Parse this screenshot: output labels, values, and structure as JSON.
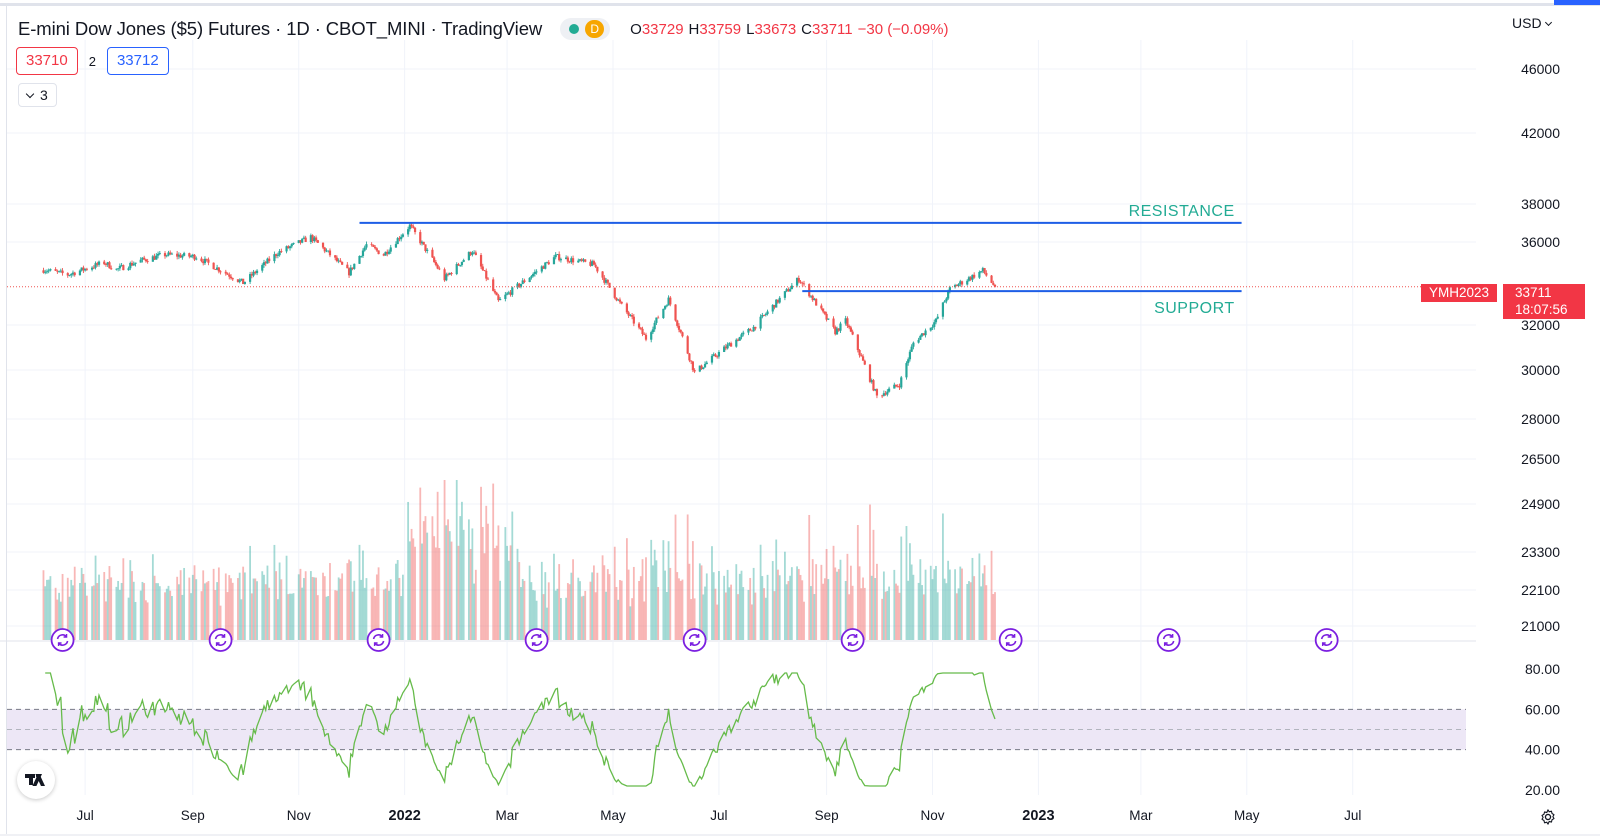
{
  "header": {
    "title": "E-mini Dow Jones ($5) Futures · 1D · CBOT_MINI · TradingView",
    "status_d": "D",
    "ohlc": {
      "o_label": "O",
      "o": "33729",
      "h_label": "H",
      "h": "33759",
      "l_label": "L",
      "l": "33673",
      "c_label": "C",
      "c": "33711",
      "change": "−30 (−0.09%)"
    },
    "sell_price": "33710",
    "spread": "2",
    "buy_price": "33712",
    "indicators_count": "3",
    "currency": "USD"
  },
  "badges": {
    "symbol": "YMH2023",
    "last_price": "33711",
    "countdown": "18:07:56"
  },
  "annotations": {
    "resistance_label": "RESISTANCE",
    "support_label": "SUPPORT"
  },
  "colors": {
    "up": "#26a69a",
    "down": "#ef5350",
    "line_blue": "#1e5ee6",
    "annotation_green": "#22ab94",
    "rsi_line": "#66bb4a",
    "rsi_band": "#ede7f6",
    "event_icon": "#7b1fe0"
  },
  "icons": {
    "logo": "tradingview-logo-icon",
    "settings": "gear-icon",
    "event": "dividend-event-icon"
  },
  "chart_data": {
    "type": "candlestick",
    "title": "E-mini Dow Jones ($5) Futures · 1D · CBOT_MINI · TradingView",
    "x_labels": [
      "Jul",
      "Sep",
      "Nov",
      "2022",
      "Mar",
      "May",
      "Jul",
      "Sep",
      "Nov",
      "2023",
      "Mar",
      "May",
      "Jul"
    ],
    "y_ticks": [
      "46000",
      "42000",
      "38000",
      "36000",
      "32000",
      "30000",
      "28000",
      "26500",
      "24900",
      "23300",
      "22100",
      "21000"
    ],
    "y_scale": "log",
    "ylim": [
      20000,
      48000
    ],
    "price_path": {
      "x": [
        "2021-06-07",
        "2021-06-21",
        "2021-07-12",
        "2021-07-19",
        "2021-08-02",
        "2021-08-16",
        "2021-09-03",
        "2021-09-30",
        "2021-10-20",
        "2021-11-08",
        "2021-11-30",
        "2021-12-10",
        "2021-12-20",
        "2022-01-04",
        "2022-01-24",
        "2022-02-09",
        "2022-02-24",
        "2022-03-29",
        "2022-04-20",
        "2022-05-06",
        "2022-05-20",
        "2022-06-02",
        "2022-06-17",
        "2022-07-05",
        "2022-07-21",
        "2022-08-16",
        "2022-09-06",
        "2022-09-12",
        "2022-09-30",
        "2022-10-13",
        "2022-10-21",
        "2022-11-03",
        "2022-11-11",
        "2022-11-30",
        "2022-12-07"
      ],
      "close": [
        34550,
        34300,
        34900,
        34550,
        35000,
        35300,
        35200,
        33900,
        35400,
        36200,
        34400,
        35800,
        35300,
        36800,
        34100,
        35500,
        33000,
        35200,
        34800,
        32800,
        31300,
        33100,
        29800,
        30900,
        31800,
        34100,
        31600,
        32100,
        28800,
        29300,
        31100,
        32100,
        33600,
        34500,
        33711
      ]
    },
    "support": 33500,
    "resistance": 36950,
    "volume_ticks": [
      "24900",
      "23300",
      "22100",
      "21000"
    ],
    "rsi": {
      "ylim": [
        20,
        80
      ],
      "ticks": [
        "80.00",
        "60.00",
        "40.00",
        "20.00"
      ],
      "band": [
        40,
        60
      ],
      "mid": 50
    },
    "events": [
      "2021-06-18",
      "2021-09-17",
      "2021-12-17",
      "2022-03-18",
      "2022-06-17",
      "2022-09-16",
      "2022-12-16",
      "2023-03-17",
      "2023-06-16"
    ]
  }
}
